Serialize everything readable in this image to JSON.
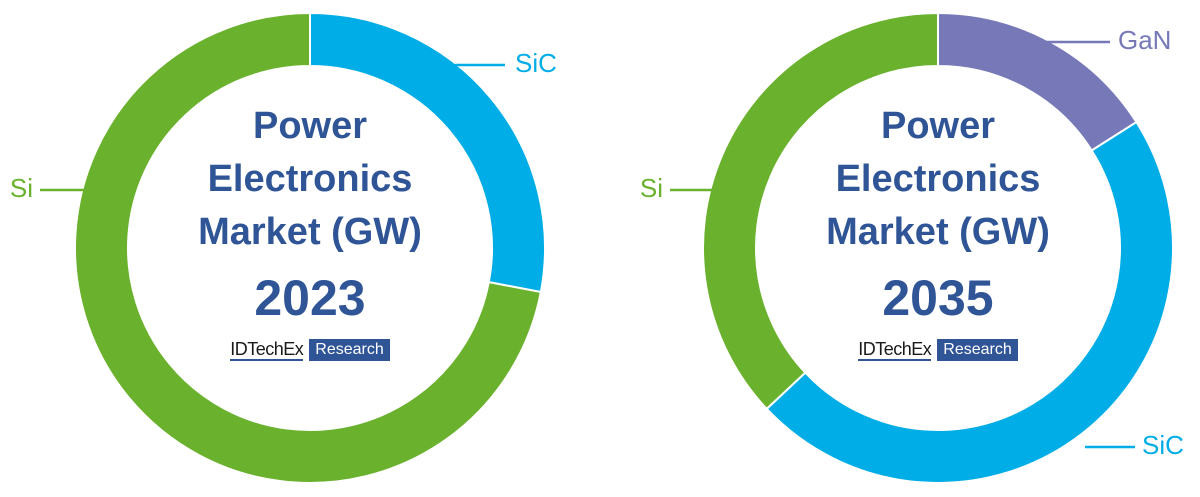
{
  "chart_data": [
    {
      "type": "pie",
      "title": "Power Electronics Market (GW)",
      "subtitle": "2023",
      "logo": "IDTechEx",
      "logo_tag": "Research",
      "categories": [
        "SiC",
        "Si"
      ],
      "values": [
        28,
        72
      ],
      "colors": [
        "#00ade6",
        "#6ab22e"
      ]
    },
    {
      "type": "pie",
      "title": "Power Electronics Market (GW)",
      "subtitle": "2035",
      "logo": "IDTechEx",
      "logo_tag": "Research",
      "categories": [
        "GaN",
        "SiC",
        "Si"
      ],
      "values": [
        16,
        47,
        37
      ],
      "colors": [
        "#7678b8",
        "#00ade6",
        "#6ab22e"
      ]
    }
  ]
}
